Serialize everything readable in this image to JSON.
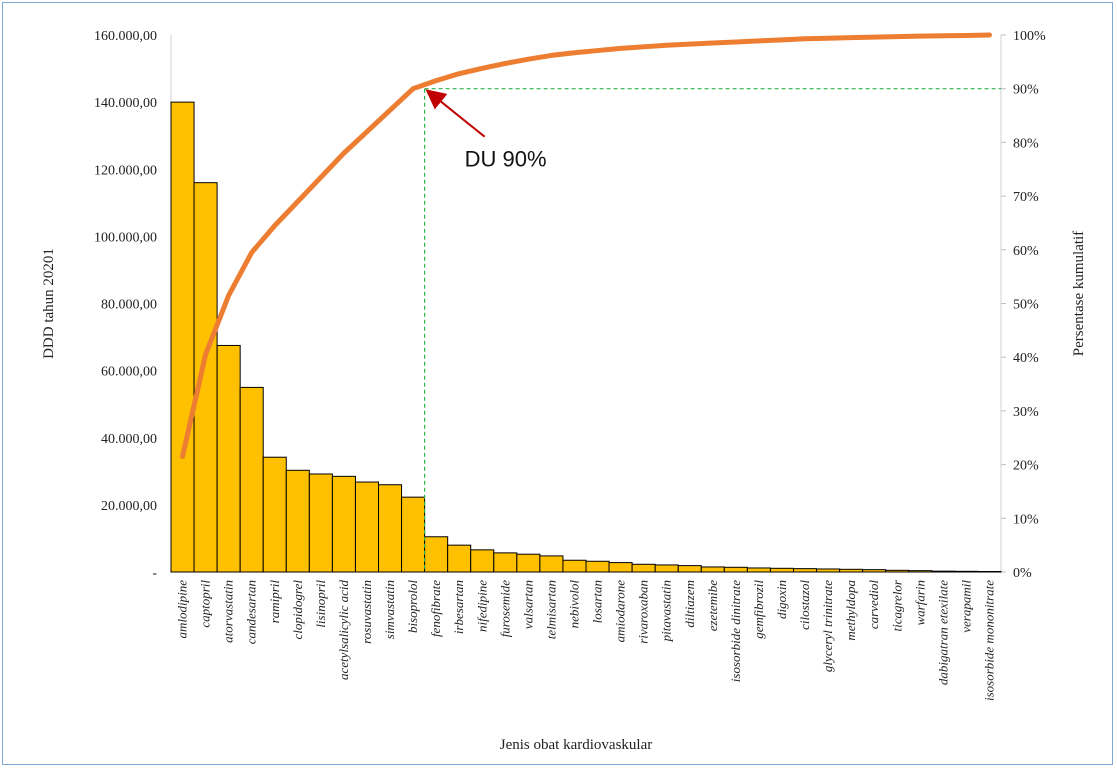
{
  "chart_data": {
    "type": "bar",
    "xlabel": "Jenis obat kardiovaskular",
    "ylabel": "DDD tahun 20201",
    "y2label": "Persentase kumulatif",
    "ylim": [
      0,
      160000
    ],
    "y2lim": [
      0,
      100
    ],
    "yticks": [
      "-",
      "20.000,00",
      "40.000,00",
      "60.000,00",
      "80.000,00",
      "100.000,00",
      "120.000,00",
      "140.000,00",
      "160.000,00"
    ],
    "y2ticks": [
      "0%",
      "10%",
      "20%",
      "30%",
      "40%",
      "50%",
      "60%",
      "70%",
      "80%",
      "90%",
      "100%"
    ],
    "categories": [
      "amlodipine",
      "captopril",
      "atorvastatin",
      "candesartan",
      "ramipril",
      "clopidogrel",
      "lisinopril",
      "acetylsalicylic acid",
      "rosuvastatin",
      "simvastatin",
      "bisoprolol",
      "fenofibrate",
      "irbesartan",
      "nifedipine",
      "furosemide",
      "valsartan",
      "telmisartan",
      "nebivolol",
      "losartan",
      "amiodarone",
      "rivaroxaban",
      "pitavastatin",
      "diltiazem",
      "ezetemibe",
      "isosorbide dinitrate",
      "gemfibrozil",
      "digoxin",
      "cilostazol",
      "glyceryl trinitrate",
      "methyldopa",
      "carvediol",
      "ticagrelor",
      "warfarin",
      "dabigatran etexilate",
      "verapamil",
      "isosorbide mononitrate"
    ],
    "series": [
      {
        "type": "bar",
        "color": "#ffc000",
        "values": [
          140000,
          116000,
          67500,
          55000,
          34200,
          30300,
          29200,
          28500,
          26800,
          26000,
          22300,
          10500,
          8000,
          6600,
          5700,
          5300,
          4800,
          3500,
          3200,
          2800,
          2300,
          2100,
          1900,
          1500,
          1400,
          1200,
          1100,
          1000,
          900,
          800,
          700,
          500,
          400,
          250,
          200,
          150
        ]
      },
      {
        "type": "line",
        "axis": "right",
        "color": "#ed7d31",
        "values": [
          21.5,
          40.5,
          51.5,
          59.5,
          64.5,
          69,
          73.5,
          78,
          82,
          86,
          90,
          91.5,
          92.8,
          93.8,
          94.7,
          95.5,
          96.2,
          96.7,
          97.1,
          97.5,
          97.8,
          98.1,
          98.3,
          98.5,
          98.7,
          98.9,
          99.1,
          99.3,
          99.4,
          99.5,
          99.6,
          99.7,
          99.8,
          99.85,
          99.9,
          100
        ]
      }
    ],
    "annotation": {
      "text": "DU 90%",
      "category_index": 10,
      "y2_value": 90,
      "line_color": "#2db34a",
      "arrow_color": "#c00000"
    }
  }
}
